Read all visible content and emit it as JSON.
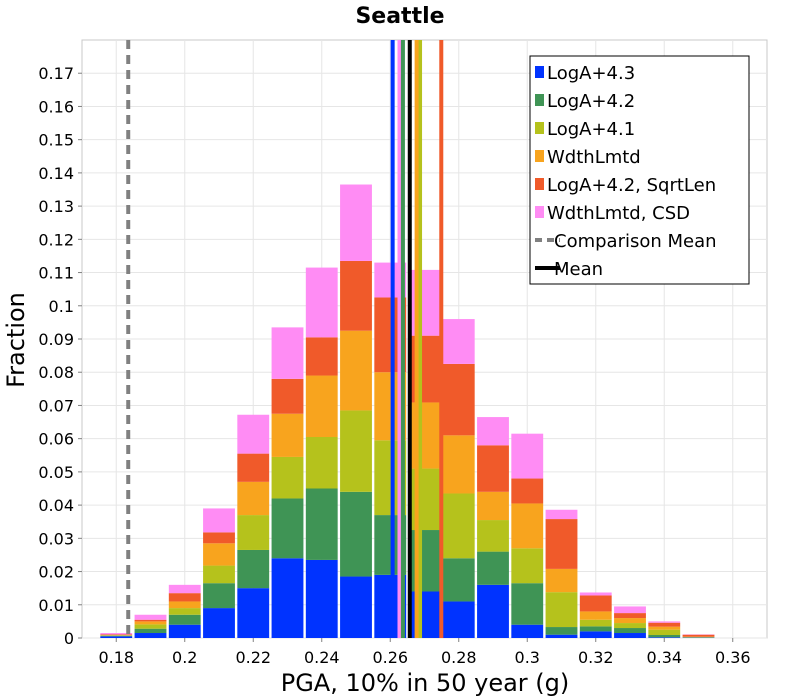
{
  "chart_data": {
    "type": "bar",
    "stacked": true,
    "title": "Seattle",
    "xlabel": "PGA, 10% in 50 year (g)",
    "ylabel": "Fraction",
    "xlim": [
      0.17,
      0.37
    ],
    "ylim": [
      0,
      0.18
    ],
    "x_ticks": [
      "0.18",
      "0.2",
      "0.22",
      "0.24",
      "0.26",
      "0.28",
      "0.3",
      "0.32",
      "0.34",
      "0.36"
    ],
    "y_ticks": [
      "0",
      "0.01",
      "0.02",
      "0.03",
      "0.04",
      "0.05",
      "0.06",
      "0.07",
      "0.08",
      "0.09",
      "0.1",
      "0.11",
      "0.12",
      "0.13",
      "0.14",
      "0.15",
      "0.16",
      "0.17"
    ],
    "grid": true,
    "legend_position": "top-right",
    "bin_width": 0.01,
    "bin_centers": [
      0.18,
      0.19,
      0.2,
      0.21,
      0.22,
      0.23,
      0.24,
      0.25,
      0.26,
      0.27,
      0.28,
      0.29,
      0.3,
      0.31,
      0.32,
      0.33,
      0.34,
      0.35,
      0.36
    ],
    "series": [
      {
        "name": "LogA+4.3",
        "color": "#0033ff",
        "values": [
          0.0005,
          0.0015,
          0.004,
          0.009,
          0.015,
          0.024,
          0.0235,
          0.0185,
          0.019,
          0.014,
          0.011,
          0.016,
          0.004,
          0.001,
          0.002,
          0.0015,
          0.0002,
          0.0001,
          0.0
        ]
      },
      {
        "name": "LogA+4.2",
        "color": "#3f9455",
        "values": [
          0.0002,
          0.0013,
          0.003,
          0.0075,
          0.0115,
          0.018,
          0.0215,
          0.0255,
          0.018,
          0.0185,
          0.013,
          0.01,
          0.0125,
          0.0023,
          0.0015,
          0.0015,
          0.0007,
          0.0001,
          0.0
        ]
      },
      {
        "name": "LogA+4.1",
        "color": "#b5c21c",
        "values": [
          0.0001,
          0.0013,
          0.002,
          0.0053,
          0.0105,
          0.0125,
          0.0155,
          0.0245,
          0.0225,
          0.0185,
          0.0195,
          0.0095,
          0.0105,
          0.0105,
          0.002,
          0.0015,
          0.0016,
          0.0001,
          0.0
        ]
      },
      {
        "name": "WdthLmtd",
        "color": "#f8a41e",
        "values": [
          0.0001,
          0.0009,
          0.002,
          0.0067,
          0.01,
          0.013,
          0.0185,
          0.024,
          0.0205,
          0.0199,
          0.0175,
          0.0085,
          0.0135,
          0.007,
          0.0025,
          0.0015,
          0.0009,
          0.0001,
          0.0
        ]
      },
      {
        "name": "LogA+4.2, SqrtLen",
        "color": "#f05a2a",
        "values": [
          0.0002,
          0.0005,
          0.0025,
          0.0033,
          0.0085,
          0.0105,
          0.0115,
          0.021,
          0.0225,
          0.0201,
          0.0215,
          0.014,
          0.0075,
          0.015,
          0.0048,
          0.0015,
          0.0012,
          0.0006,
          0.0
        ]
      },
      {
        "name": "WdthLmtd, CSD",
        "color": "#ff8cf4",
        "values": [
          0.0004,
          0.0015,
          0.0025,
          0.0072,
          0.0117,
          0.0155,
          0.021,
          0.023,
          0.0105,
          0.0198,
          0.0135,
          0.0085,
          0.0135,
          0.0028,
          0.0009,
          0.002,
          0.0004,
          0.0001,
          0.0
        ]
      }
    ],
    "lines": [
      {
        "name": "Comparison Mean",
        "style": "dashed",
        "color": "#808080",
        "x": 0.1835
      },
      {
        "name": "Mean",
        "style": "solid",
        "color": "#000000",
        "x": 0.2657
      }
    ],
    "series_means": [
      {
        "series": "LogA+4.3",
        "color": "#0033ff",
        "x": 0.2607
      },
      {
        "series": "WdthLmtd, CSD",
        "color": "#ff8cf4",
        "x": 0.2627
      },
      {
        "series": "LogA+4.2",
        "color": "#3f9455",
        "x": 0.2637
      },
      {
        "series": "LogA+4.1",
        "color": "#b5c21c",
        "x": 0.2687
      },
      {
        "series": "WdthLmtd",
        "color": "#f8a41e",
        "x": 0.2677
      },
      {
        "series": "LogA+4.2, SqrtLen",
        "color": "#f05a2a",
        "x": 0.2749
      }
    ]
  }
}
